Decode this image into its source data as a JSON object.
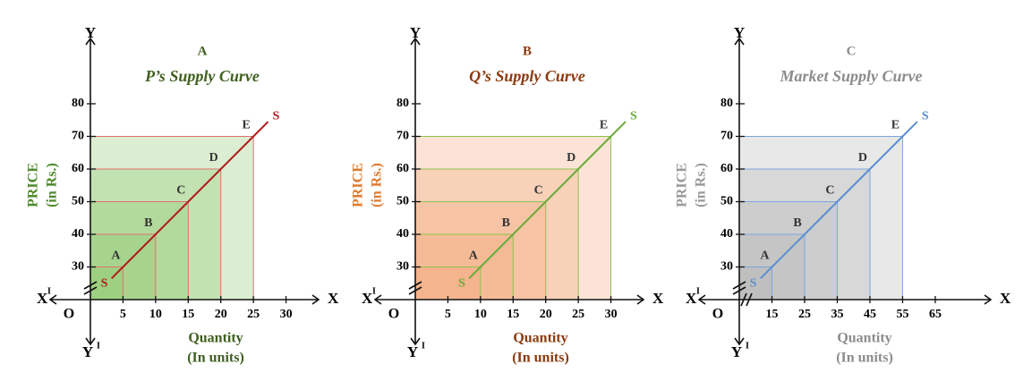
{
  "chart_data": [
    {
      "type": "line",
      "title": "A",
      "subtitle": "P’s Supply Curve",
      "xlabel": [
        "Quantity",
        "(In units)"
      ],
      "ylabel": [
        "PRICE",
        "(in Rs.)"
      ],
      "axis_labels": {
        "x": "X",
        "y": "Y",
        "origin": "O",
        "prime": "I"
      },
      "xlim": [
        0,
        35
      ],
      "ylim": [
        20,
        100
      ],
      "xticks": [
        5,
        10,
        15,
        20,
        25,
        30
      ],
      "yticks": [
        30,
        40,
        50,
        60,
        70,
        80
      ],
      "x_break": false,
      "colors": {
        "title": "#3f5f1f",
        "label": "#4e8a2e",
        "fill": "#8cc66a",
        "guide": "#e07070"
      },
      "series": [
        {
          "name": "S",
          "color": "#b01c1c",
          "x": [
            5,
            10,
            15,
            20,
            25
          ],
          "values": [
            30,
            40,
            50,
            60,
            70
          ],
          "point_labels": [
            "A",
            "B",
            "C",
            "D",
            "E"
          ]
        }
      ]
    },
    {
      "type": "line",
      "title": "B",
      "subtitle": "Q’s Supply Curve",
      "xlabel": [
        "Quantity",
        "(In units)"
      ],
      "ylabel": [
        "PRICE",
        "(in Rs.)"
      ],
      "axis_labels": {
        "x": "X",
        "y": "Y",
        "origin": "O",
        "prime": "I"
      },
      "xlim": [
        0,
        35
      ],
      "ylim": [
        20,
        100
      ],
      "xticks": [
        5,
        10,
        15,
        20,
        25,
        30
      ],
      "yticks": [
        30,
        40,
        50,
        60,
        70,
        80
      ],
      "x_break": false,
      "colors": {
        "title": "#8b3a0e",
        "label": "#e07a30",
        "fill": "#f2a577",
        "guide": "#8bc34a"
      },
      "series": [
        {
          "name": "S",
          "color": "#6aab3a",
          "x": [
            10,
            15,
            20,
            25,
            30
          ],
          "values": [
            30,
            40,
            50,
            60,
            70
          ],
          "point_labels": [
            "A",
            "B",
            "C",
            "D",
            "E"
          ]
        }
      ]
    },
    {
      "type": "line",
      "title": "C",
      "subtitle": "Market Supply Curve",
      "xlabel": [
        "Quantity",
        "(In units)"
      ],
      "ylabel": [
        "PRICE",
        "(in Rs.)"
      ],
      "axis_labels": {
        "x": "X",
        "y": "Y",
        "origin": "O",
        "prime": "I"
      },
      "xlim": [
        5,
        82
      ],
      "ylim": [
        20,
        100
      ],
      "xticks": [
        15,
        25,
        35,
        45,
        55,
        65
      ],
      "yticks": [
        30,
        40,
        50,
        60,
        70,
        80
      ],
      "x_break": true,
      "colors": {
        "title": "#8c8c8c",
        "label": "#999999",
        "fill": "#b4b4b4",
        "guide": "#7aa6dc"
      },
      "series": [
        {
          "name": "S",
          "color": "#5b8fd0",
          "x": [
            15,
            25,
            35,
            45,
            55
          ],
          "values": [
            30,
            40,
            50,
            60,
            70
          ],
          "point_labels": [
            "A",
            "B",
            "C",
            "D",
            "E"
          ]
        }
      ]
    }
  ]
}
